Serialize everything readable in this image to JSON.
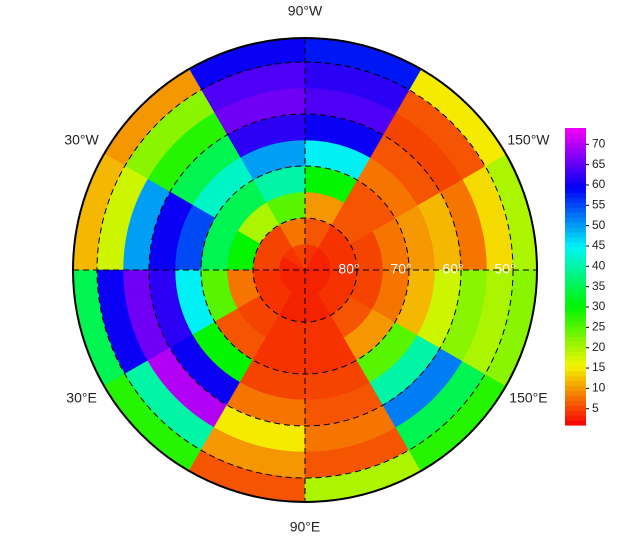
{
  "map": {
    "lon_labels": [
      {
        "value": -90,
        "label": "90°W"
      },
      {
        "value": -30,
        "label": "30°W"
      },
      {
        "value": -150,
        "label": "150°W"
      },
      {
        "value": 30,
        "label": "30°E"
      },
      {
        "value": 150,
        "label": "150°E"
      },
      {
        "value": 90,
        "label": "90°E"
      }
    ],
    "lat_labels": [
      {
        "value": 80,
        "label": "80°"
      },
      {
        "value": 70,
        "label": "70°"
      },
      {
        "value": 60,
        "label": "60°"
      },
      {
        "value": 50,
        "label": "50°"
      }
    ],
    "lat_edges": [
      90,
      85,
      80,
      75,
      70,
      65,
      60,
      55,
      50,
      45
    ],
    "lon_edges": [
      -180,
      -150,
      -120,
      -90,
      -60,
      -30,
      0,
      30,
      60,
      90,
      120,
      150,
      180
    ],
    "values": [
      [
        3,
        3,
        4,
        5,
        4,
        3,
        3,
        3,
        3,
        3,
        3,
        3
      ],
      [
        4,
        4,
        6,
        8,
        5,
        5,
        4,
        4,
        3,
        3,
        4,
        4
      ],
      [
        5,
        6,
        10,
        25,
        20,
        30,
        8,
        5,
        4,
        4,
        6,
        5
      ],
      [
        8,
        6,
        30,
        40,
        35,
        35,
        25,
        6,
        4,
        4,
        10,
        8
      ],
      [
        10,
        8,
        45,
        50,
        42,
        55,
        45,
        30,
        5,
        5,
        25,
        12
      ],
      [
        12,
        6,
        60,
        62,
        35,
        60,
        62,
        60,
        8,
        6,
        40,
        18
      ],
      [
        8,
        5,
        64,
        66,
        28,
        50,
        66,
        70,
        15,
        8,
        52,
        22
      ],
      [
        14,
        6,
        62,
        64,
        22,
        18,
        60,
        40,
        10,
        6,
        35,
        20
      ],
      [
        20,
        15,
        58,
        60,
        10,
        12,
        35,
        28,
        6,
        20,
        28,
        22
      ]
    ]
  },
  "colorbar": {
    "lim": [
      1,
      74
    ],
    "ticks": [
      5,
      10,
      15,
      20,
      25,
      30,
      35,
      40,
      45,
      50,
      55,
      60,
      65,
      70
    ]
  }
}
